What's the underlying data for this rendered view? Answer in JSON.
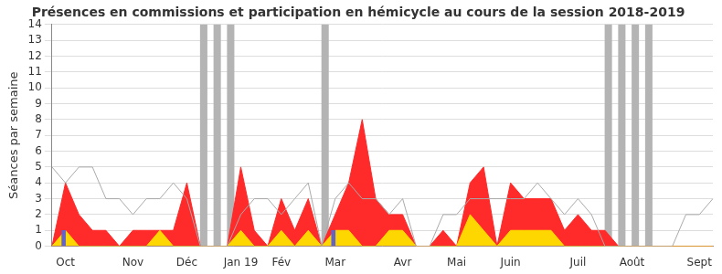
{
  "chart_data": {
    "type": "line",
    "title": "Présences en commissions et participation en hémicycle au cours de la session 2018-2019",
    "y_label": "Séances par semaine",
    "categories": [
      null,
      "Oct",
      null,
      null,
      null,
      null,
      "Nov",
      null,
      null,
      null,
      "Déc",
      null,
      null,
      null,
      "Jan 19",
      null,
      null,
      "Fév",
      null,
      null,
      null,
      "Mar",
      null,
      null,
      null,
      null,
      "Avr",
      null,
      null,
      null,
      "Mai",
      null,
      null,
      null,
      "Juin",
      null,
      null,
      null,
      null,
      "Juil",
      null,
      null,
      null,
      "Août",
      null,
      null,
      null,
      null,
      "Sept",
      null
    ],
    "series": [
      {
        "type": "band",
        "color": "#b4b4b4",
        "values": [
          null,
          null,
          null,
          null,
          null,
          null,
          null,
          null,
          null,
          null,
          null,
          14,
          14,
          14,
          null,
          null,
          null,
          null,
          null,
          null,
          14,
          null,
          null,
          null,
          null,
          null,
          null,
          null,
          null,
          null,
          null,
          null,
          null,
          null,
          null,
          null,
          null,
          null,
          null,
          null,
          null,
          14,
          14,
          14,
          14,
          null,
          null,
          null,
          null,
          null
        ]
      },
      {
        "type": "area",
        "color": "#ff2a2a",
        "values": [
          0,
          4,
          2,
          1,
          1,
          0,
          1,
          1,
          1,
          1,
          4,
          0,
          0,
          0,
          5,
          1,
          0,
          3,
          1,
          3,
          0,
          2,
          4,
          8,
          3,
          2,
          2,
          0,
          0,
          1,
          0,
          4,
          5,
          0,
          4,
          3,
          3,
          3,
          1,
          2,
          1,
          1,
          0,
          0,
          0,
          0,
          0,
          0,
          0,
          0
        ]
      },
      {
        "type": "area",
        "color": "#ffd700",
        "values": [
          0,
          1,
          0,
          0,
          0,
          0,
          0,
          0,
          1,
          0,
          0,
          0,
          0,
          0,
          1,
          0,
          0,
          1,
          0,
          1,
          0,
          1,
          1,
          0,
          0,
          1,
          1,
          0,
          0,
          0,
          0,
          2,
          1,
          0,
          1,
          1,
          1,
          1,
          0,
          0,
          0,
          0,
          0,
          0,
          0,
          0,
          0,
          0,
          0,
          0
        ]
      },
      {
        "type": "line",
        "color": "#aaaaaa",
        "values": [
          5,
          4,
          5,
          5,
          3,
          3,
          2,
          3,
          3,
          4,
          3,
          0,
          0,
          0,
          2,
          3,
          3,
          2,
          3,
          4,
          0,
          3,
          4,
          3,
          3,
          2,
          3,
          0,
          0,
          2,
          2,
          3,
          3,
          3,
          3,
          3,
          4,
          3,
          2,
          3,
          2,
          0,
          0,
          0,
          0,
          0,
          0,
          2,
          2,
          3
        ]
      },
      {
        "type": "bar",
        "color": "#6464c8",
        "values": [
          null,
          1,
          null,
          null,
          null,
          null,
          null,
          null,
          null,
          null,
          null,
          null,
          null,
          null,
          null,
          null,
          null,
          null,
          null,
          null,
          null,
          1,
          null,
          null,
          null,
          null,
          null,
          null,
          null,
          null,
          null,
          null,
          null,
          null,
          null,
          null,
          null,
          null,
          null,
          null,
          null,
          null,
          null,
          null,
          null,
          null,
          null,
          null,
          null,
          null
        ]
      }
    ],
    "ylim": [
      0,
      14
    ],
    "yticks": [
      0,
      1,
      2,
      3,
      4,
      5,
      6,
      7,
      8,
      9,
      10,
      11,
      12,
      13,
      14
    ],
    "grid": true
  }
}
